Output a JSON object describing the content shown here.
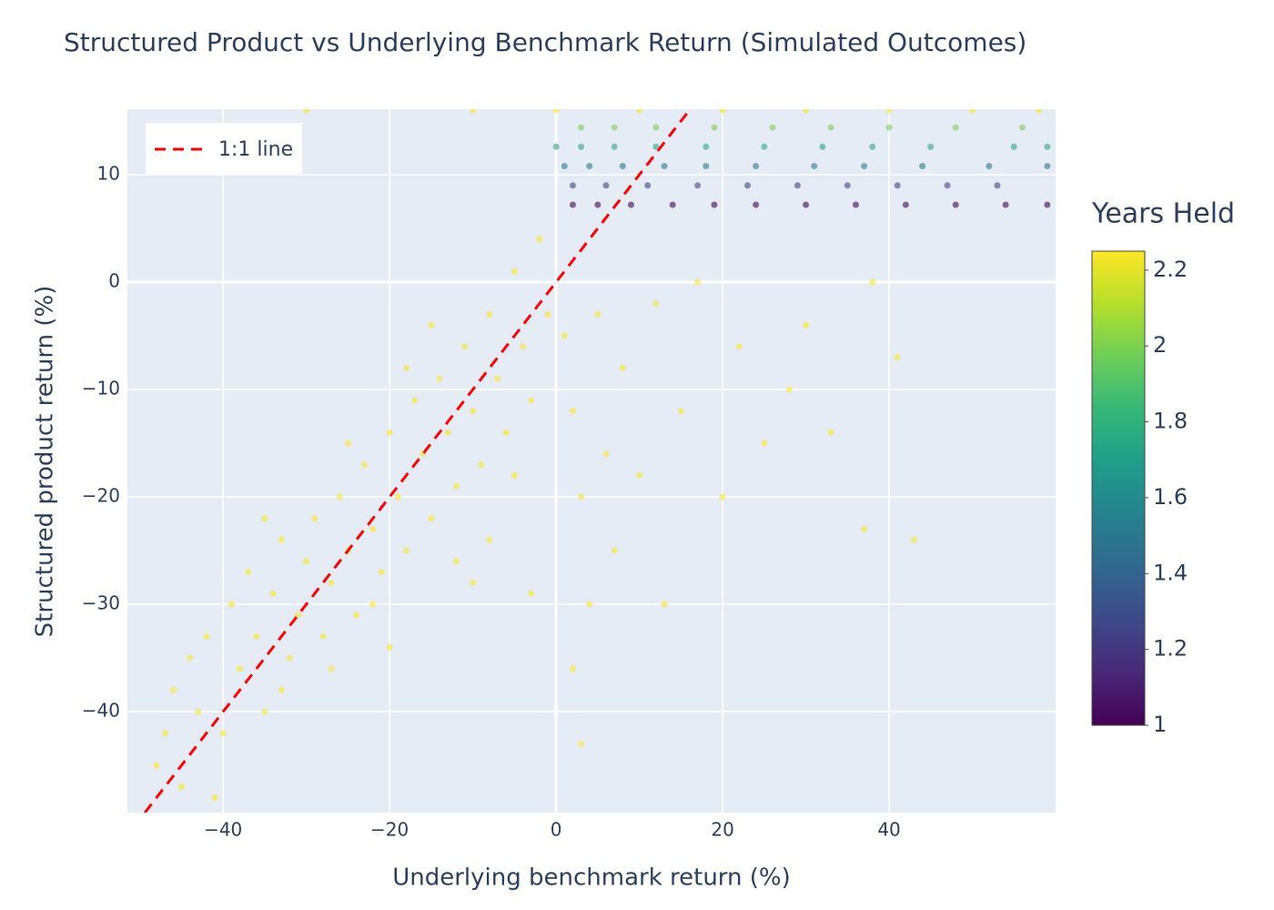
{
  "chart_data": {
    "type": "scatter",
    "title": "Structured Product vs Underlying Benchmark Return (Simulated Outcomes)",
    "x_label": "Underlying benchmark return (%)",
    "y_label": "Structured product return (%)",
    "xlim": [
      -51.5,
      60
    ],
    "ylim": [
      -49.4,
      16.1
    ],
    "xticks": [
      {
        "value": -40,
        "label": "−40"
      },
      {
        "value": -20,
        "label": "−20"
      },
      0,
      20,
      40
    ],
    "yticks": [
      {
        "value": -40,
        "label": "−40"
      },
      {
        "value": -30,
        "label": "−30"
      },
      {
        "value": -20,
        "label": "−20"
      },
      {
        "value": -10,
        "label": "−10"
      },
      0,
      10
    ],
    "grid": true,
    "legend": "top-left",
    "x": [
      -48,
      -46,
      -45,
      -43,
      -42,
      -40,
      -39,
      -38,
      -37,
      -36,
      -35,
      -34,
      -33,
      -32,
      -31,
      -30,
      -29,
      -28,
      -27,
      -26,
      -25,
      -24,
      -23,
      -22,
      -21,
      -20,
      -19,
      -18,
      -17,
      -16,
      -15,
      -14,
      -13,
      -12,
      -11,
      -10,
      -9,
      -8,
      -7,
      -6,
      -5,
      -4,
      -3,
      -2,
      -1,
      -33,
      -41,
      -44,
      -27,
      -22,
      -18,
      -12,
      -8,
      -5,
      -3,
      -15,
      -25,
      -35,
      -47,
      -20,
      -10,
      1,
      2,
      3,
      4,
      5,
      6,
      7,
      8,
      10,
      12,
      13,
      15,
      17,
      20,
      22,
      25,
      28,
      30,
      33,
      37,
      38,
      41,
      43,
      3,
      2,
      -30,
      -10,
      0,
      10,
      20,
      30,
      40,
      50,
      58,
      2,
      5,
      9,
      14,
      19,
      24,
      30,
      36,
      42,
      48,
      54,
      59,
      2,
      6,
      11,
      17,
      23,
      29,
      35,
      41,
      47,
      53,
      1,
      4,
      8,
      13,
      18,
      24,
      31,
      37,
      44,
      52,
      59,
      0,
      3,
      7,
      12,
      18,
      25,
      32,
      38,
      45,
      55,
      59,
      3,
      7,
      12,
      19,
      26,
      33,
      40,
      48,
      56
    ],
    "y": [
      -45,
      -38,
      -47,
      -40,
      -33,
      -42,
      -30,
      -36,
      -27,
      -33,
      -40,
      -29,
      -24,
      -35,
      -31,
      -26,
      -22,
      -33,
      -28,
      -20,
      -25,
      -31,
      -17,
      -23,
      -27,
      -14,
      -20,
      -25,
      -11,
      -16,
      -22,
      -9,
      -14,
      -19,
      -6,
      -12,
      -17,
      -3,
      -9,
      -14,
      1,
      -6,
      -11,
      4,
      -3,
      -38,
      -48,
      -35,
      -36,
      -30,
      -8,
      -26,
      -24,
      -18,
      -29,
      -4,
      -15,
      -22,
      -42,
      -34,
      -28,
      -5,
      -12,
      -20,
      -30,
      -3,
      -16,
      -25,
      -8,
      -18,
      -2,
      -30,
      -12,
      0,
      -20,
      -6,
      -15,
      -10,
      -4,
      -14,
      -23,
      0,
      -7,
      -24,
      -43,
      -36,
      16,
      16,
      16,
      16,
      16,
      16,
      16,
      16,
      16,
      7.2,
      7.2,
      7.2,
      7.2,
      7.2,
      7.2,
      7.2,
      7.2,
      7.2,
      7.2,
      7.2,
      7.2,
      9,
      9,
      9,
      9,
      9,
      9,
      9,
      9,
      9,
      9,
      10.8,
      10.8,
      10.8,
      10.8,
      10.8,
      10.8,
      10.8,
      10.8,
      10.8,
      10.8,
      10.8,
      12.6,
      12.6,
      12.6,
      12.6,
      12.6,
      12.6,
      12.6,
      12.6,
      12.6,
      12.6,
      12.6,
      14.4,
      14.4,
      14.4,
      14.4,
      14.4,
      14.4,
      14.4,
      14.4,
      14.4
    ],
    "color_values": [
      2.25,
      2.25,
      2.25,
      2.25,
      2.25,
      2.25,
      2.25,
      2.25,
      2.25,
      2.25,
      2.25,
      2.25,
      2.25,
      2.25,
      2.25,
      2.25,
      2.25,
      2.25,
      2.25,
      2.25,
      2.25,
      2.25,
      2.25,
      2.25,
      2.25,
      2.25,
      2.25,
      2.25,
      2.25,
      2.25,
      2.25,
      2.25,
      2.25,
      2.25,
      2.25,
      2.25,
      2.25,
      2.25,
      2.25,
      2.25,
      2.25,
      2.25,
      2.25,
      2.25,
      2.25,
      2.25,
      2.25,
      2.25,
      2.25,
      2.25,
      2.25,
      2.25,
      2.25,
      2.25,
      2.25,
      2.25,
      2.25,
      2.25,
      2.25,
      2.25,
      2.25,
      2.25,
      2.25,
      2.25,
      2.25,
      2.25,
      2.25,
      2.25,
      2.25,
      2.25,
      2.25,
      2.25,
      2.25,
      2.25,
      2.25,
      2.25,
      2.25,
      2.25,
      2.25,
      2.25,
      2.25,
      2.25,
      2.25,
      2.25,
      2.25,
      2.25,
      2.25,
      2.25,
      2.25,
      2.25,
      2.25,
      2.25,
      2.25,
      2.25,
      2.25,
      1,
      1,
      1,
      1,
      1,
      1,
      1,
      1,
      1,
      1,
      1,
      1,
      1.25,
      1.25,
      1.25,
      1.25,
      1.25,
      1.25,
      1.25,
      1.25,
      1.25,
      1.25,
      1.5,
      1.5,
      1.5,
      1.5,
      1.5,
      1.5,
      1.5,
      1.5,
      1.5,
      1.5,
      1.5,
      1.75,
      1.75,
      1.75,
      1.75,
      1.75,
      1.75,
      1.75,
      1.75,
      1.75,
      1.75,
      1.75,
      2,
      2,
      2,
      2,
      2,
      2,
      2,
      2,
      2
    ],
    "colorscale": [
      [
        0,
        "#440154"
      ],
      [
        0.111,
        "#482878"
      ],
      [
        0.222,
        "#3e4989"
      ],
      [
        0.333,
        "#31688e"
      ],
      [
        0.444,
        "#26828e"
      ],
      [
        0.556,
        "#1f9e89"
      ],
      [
        0.667,
        "#35b779"
      ],
      [
        0.778,
        "#6ece58"
      ],
      [
        0.889,
        "#b5de2b"
      ],
      [
        1,
        "#fde725"
      ]
    ],
    "colorbar": {
      "title": "Years Held",
      "lim": [
        1,
        2.25
      ],
      "ticks": [
        1,
        1.2,
        1.4,
        1.6,
        1.8,
        2,
        2.2
      ]
    },
    "reference_line": {
      "name": "1:1 line",
      "color": "#ff0000",
      "dash": true,
      "x": [
        -49.4,
        16.1
      ],
      "y": [
        -49.4,
        16.1
      ]
    }
  }
}
